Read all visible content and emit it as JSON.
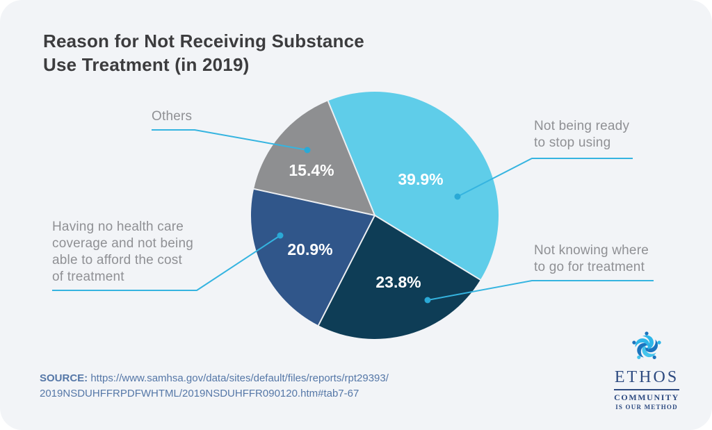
{
  "header": {
    "title": "Reason for Not Receiving Substance Use Treatment (in 2019)"
  },
  "chart_data": {
    "type": "pie",
    "title": "Reason for Not Receiving Substance Use Treatment (in 2019)",
    "value_format": "percent",
    "start_angle_from_top_deg": -22.2,
    "direction": "clockwise",
    "slices": [
      {
        "label": "Not being ready to stop using",
        "value": 39.9,
        "color": "#5fcde9"
      },
      {
        "label": "Not knowing where to go for treatment",
        "value": 23.8,
        "color": "#0e3d56"
      },
      {
        "label": "Having no health care coverage and not being able to afford the cost of treatment",
        "value": 20.9,
        "color": "#30568a"
      },
      {
        "label": "Others",
        "value": 15.4,
        "color": "#8e8f91"
      }
    ],
    "percent_label_color": "#ffffff",
    "callout_line_color": "#35b4e0",
    "callout_dot_color": "#2aa9d6",
    "legend_position": "callout-labels-around-pie"
  },
  "callout_labels": {
    "ready": "Not being ready\nto stop using",
    "knowing": "Not knowing where\nto go for treatment",
    "coverage": "Having no health care\ncoverage and not being\nable to afford the cost\nof treatment",
    "others": "Others"
  },
  "source": {
    "label": "SOURCE:",
    "url": "https://www.samhsa.gov/data/sites/default/files/reports/rpt29393/\n2019NSDUHFFRPDFWHTML/2019NSDUHFFR090120.htm#tab7-67"
  },
  "logo": {
    "name": "ETHOS",
    "tagline_line1": "COMMUNITY",
    "tagline_line2": "IS OUR METHOD",
    "color": "#2d4a80"
  }
}
